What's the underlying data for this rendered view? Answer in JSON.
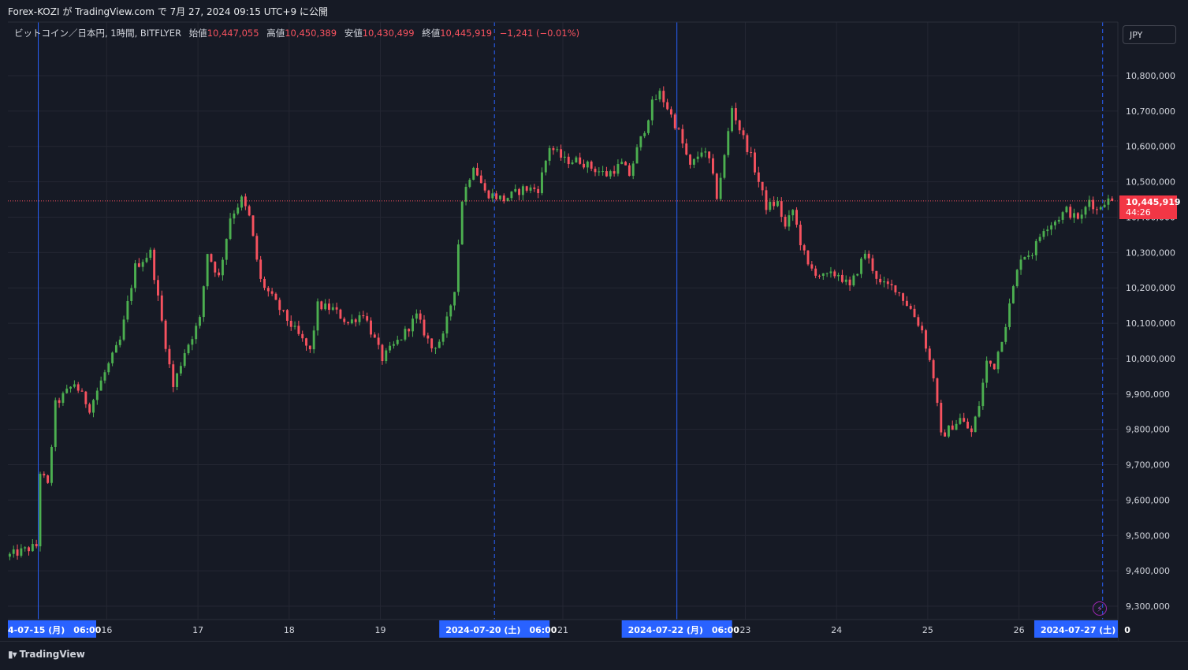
{
  "header": {
    "caption": "Forex-KOZI が TradingView.com で 7月 27, 2024 09:15 UTC+9 に公開"
  },
  "legend": {
    "symbol": "ビットコイン／日本円, 1時間, BITFLYER",
    "open_label": "始値",
    "open": "10,447,055",
    "high_label": "高値",
    "high": "10,450,389",
    "low_label": "安値",
    "low": "10,430,499",
    "close_label": "終値",
    "close": "10,445,919",
    "change": "−1,241 (−0.01%)"
  },
  "currency_button": "JPY",
  "last_price": {
    "value": "10,445,919",
    "countdown": "44:26"
  },
  "footer": {
    "brand": "TradingView"
  },
  "colors": {
    "up": "#26a69a",
    "up_candle": "#4caf50",
    "down": "#f7525f",
    "background": "#161a25",
    "grid": "#242733",
    "marker": "#2962ff"
  },
  "chart_data": {
    "type": "candlestick",
    "title": "ビットコイン／日本円, 1時間, BITFLYER",
    "ylim": [
      9280000,
      10880000
    ],
    "y_ticks": [
      9300000,
      9400000,
      9500000,
      9600000,
      9700000,
      9800000,
      9900000,
      10000000,
      10100000,
      10200000,
      10300000,
      10400000,
      10500000,
      10600000,
      10700000,
      10800000
    ],
    "y_tick_labels": [
      "9,300,000",
      "9,400,000",
      "9,500,000",
      "9,600,000",
      "9,700,000",
      "9,800,000",
      "9,900,000",
      "10,000,000",
      "10,100,000",
      "10,200,000",
      "10,300,000",
      "10,400,000",
      "10,500,000",
      "10,600,000",
      "10,700,000",
      "10,800,000"
    ],
    "x_day_labels": [
      {
        "label": "16",
        "hour": 42
      },
      {
        "label": "17",
        "hour": 66
      },
      {
        "label": "18",
        "hour": 90
      },
      {
        "label": "19",
        "hour": 114
      },
      {
        "label": "21",
        "hour": 162
      },
      {
        "label": "23",
        "hour": 210
      },
      {
        "label": "24",
        "hour": 234
      },
      {
        "label": "25",
        "hour": 258
      },
      {
        "label": "26",
        "hour": 282
      }
    ],
    "x_markers": [
      {
        "label": "4-07-15 (月)　06:00",
        "hour": 24,
        "style": "solid"
      },
      {
        "label": "2024-07-20 (土)　06:00",
        "hour": 144,
        "style": "dashed"
      },
      {
        "label": "2024-07-22 (月)　06:00",
        "hour": 192,
        "style": "solid"
      },
      {
        "label": "2024-07-27 (土)　0",
        "hour": 304,
        "style": "dashed"
      }
    ],
    "last_price": 10445919,
    "waypoints": [
      [
        16,
        9440000
      ],
      [
        24,
        9470000
      ],
      [
        25,
        9680000
      ],
      [
        27,
        9640000
      ],
      [
        29,
        9870000
      ],
      [
        34,
        9930000
      ],
      [
        38,
        9860000
      ],
      [
        42,
        9960000
      ],
      [
        46,
        10050000
      ],
      [
        50,
        10260000
      ],
      [
        54,
        10300000
      ],
      [
        58,
        10040000
      ],
      [
        60,
        9920000
      ],
      [
        63,
        10020000
      ],
      [
        67,
        10110000
      ],
      [
        69,
        10300000
      ],
      [
        72,
        10230000
      ],
      [
        75,
        10400000
      ],
      [
        78,
        10450000
      ],
      [
        80,
        10400000
      ],
      [
        83,
        10220000
      ],
      [
        88,
        10140000
      ],
      [
        92,
        10080000
      ],
      [
        96,
        10020000
      ],
      [
        98,
        10150000
      ],
      [
        102,
        10140000
      ],
      [
        106,
        10100000
      ],
      [
        110,
        10130000
      ],
      [
        115,
        10000000
      ],
      [
        120,
        10060000
      ],
      [
        124,
        10120000
      ],
      [
        128,
        10030000
      ],
      [
        131,
        10060000
      ],
      [
        134,
        10200000
      ],
      [
        136,
        10450000
      ],
      [
        139,
        10550000
      ],
      [
        142,
        10470000
      ],
      [
        147,
        10450000
      ],
      [
        152,
        10480000
      ],
      [
        156,
        10480000
      ],
      [
        159,
        10600000
      ],
      [
        163,
        10560000
      ],
      [
        167,
        10560000
      ],
      [
        170,
        10540000
      ],
      [
        174,
        10520000
      ],
      [
        178,
        10550000
      ],
      [
        180,
        10520000
      ],
      [
        182,
        10590000
      ],
      [
        184,
        10650000
      ],
      [
        186,
        10720000
      ],
      [
        188,
        10750000
      ],
      [
        190,
        10710000
      ],
      [
        193,
        10640000
      ],
      [
        196,
        10540000
      ],
      [
        199,
        10590000
      ],
      [
        201,
        10560000
      ],
      [
        203,
        10460000
      ],
      [
        205,
        10570000
      ],
      [
        207,
        10710000
      ],
      [
        209,
        10650000
      ],
      [
        212,
        10570000
      ],
      [
        214,
        10500000
      ],
      [
        216,
        10430000
      ],
      [
        219,
        10440000
      ],
      [
        221,
        10370000
      ],
      [
        223,
        10420000
      ],
      [
        225,
        10330000
      ],
      [
        227,
        10260000
      ],
      [
        231,
        10230000
      ],
      [
        235,
        10240000
      ],
      [
        238,
        10200000
      ],
      [
        242,
        10300000
      ],
      [
        246,
        10210000
      ],
      [
        250,
        10200000
      ],
      [
        254,
        10140000
      ],
      [
        257,
        10080000
      ],
      [
        260,
        9950000
      ],
      [
        262,
        9780000
      ],
      [
        264,
        9800000
      ],
      [
        267,
        9830000
      ],
      [
        270,
        9790000
      ],
      [
        272,
        9870000
      ],
      [
        274,
        9990000
      ],
      [
        276,
        9980000
      ],
      [
        279,
        10100000
      ],
      [
        281,
        10200000
      ],
      [
        283,
        10290000
      ],
      [
        286,
        10300000
      ],
      [
        289,
        10370000
      ],
      [
        292,
        10390000
      ],
      [
        295,
        10420000
      ],
      [
        297,
        10400000
      ],
      [
        299,
        10400000
      ],
      [
        301,
        10450000
      ],
      [
        303,
        10420000
      ],
      [
        305,
        10447000
      ],
      [
        306,
        10446000
      ]
    ]
  }
}
